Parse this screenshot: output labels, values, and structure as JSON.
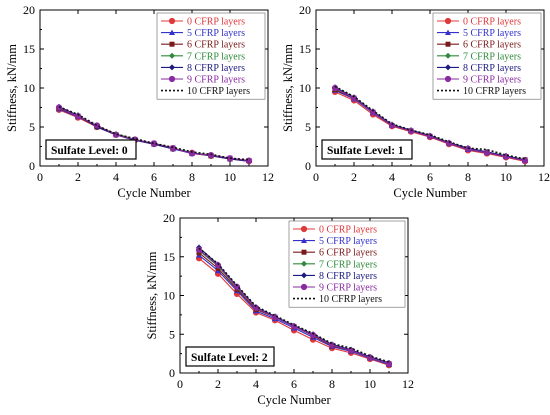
{
  "series_styles": [
    {
      "name": "0 CFRP layers",
      "color": "#e0383a",
      "text_color": "#e0383a",
      "marker": "circle",
      "dash": ""
    },
    {
      "name": "5 CFRP layers",
      "color": "#3333cc",
      "text_color": "#3333cc",
      "marker": "triangle",
      "dash": ""
    },
    {
      "name": "6 CFRP layers",
      "color": "#7a1a1a",
      "text_color": "#7a1a1a",
      "marker": "square",
      "dash": ""
    },
    {
      "name": "7 CFRP layers",
      "color": "#2e8b3a",
      "text_color": "#2e8b3a",
      "marker": "diamond",
      "dash": ""
    },
    {
      "name": "8 CFRP layers",
      "color": "#1c1c80",
      "text_color": "#1c1c80",
      "marker": "diamond",
      "dash": ""
    },
    {
      "name": "9 CFRP layers",
      "color": "#8a2aa0",
      "text_color": "#8a2aa0",
      "marker": "circle",
      "dash": ""
    },
    {
      "name": "10 CFRP layers",
      "color": "#111111",
      "text_color": "#111111",
      "marker": "none",
      "dash": "2,2"
    }
  ],
  "chart_data": [
    {
      "type": "line",
      "xlabel": "Cycle Number",
      "ylabel": "Stiffness, kN/mm",
      "xlim": [
        0,
        12
      ],
      "ylim": [
        0,
        20
      ],
      "xticks": [
        0,
        2,
        4,
        6,
        8,
        10,
        12
      ],
      "yticks": [
        0,
        5,
        10,
        15,
        20
      ],
      "annotation": "Sulfate Level: 0",
      "legend_position": "top-right",
      "x": [
        1,
        2,
        3,
        4,
        5,
        6,
        7,
        8,
        9,
        10,
        11
      ],
      "series": [
        {
          "name": "0 CFRP layers",
          "values": [
            7.2,
            6.2,
            5.0,
            4.0,
            3.3,
            2.8,
            2.2,
            1.7,
            1.3,
            0.9,
            0.6
          ]
        },
        {
          "name": "5 CFRP layers",
          "values": [
            7.3,
            6.3,
            5.1,
            4.1,
            3.4,
            2.8,
            2.2,
            1.6,
            1.4,
            0.9,
            0.7
          ]
        },
        {
          "name": "6 CFRP layers",
          "values": [
            7.4,
            6.4,
            5.0,
            4.0,
            3.4,
            2.9,
            2.3,
            1.6,
            1.3,
            1.0,
            0.7
          ]
        },
        {
          "name": "7 CFRP layers",
          "values": [
            7.5,
            6.5,
            5.1,
            4.1,
            3.4,
            2.8,
            2.3,
            1.7,
            1.4,
            0.9,
            0.7
          ]
        },
        {
          "name": "8 CFRP layers",
          "values": [
            7.6,
            6.5,
            5.0,
            4.0,
            3.3,
            2.8,
            2.2,
            1.7,
            1.3,
            0.9,
            0.6
          ]
        },
        {
          "name": "9 CFRP layers",
          "values": [
            7.5,
            6.4,
            5.2,
            4.0,
            3.4,
            2.9,
            2.3,
            1.6,
            1.4,
            1.0,
            0.7
          ]
        },
        {
          "name": "10 CFRP layers",
          "values": [
            7.6,
            6.6,
            5.2,
            4.1,
            3.5,
            2.9,
            2.4,
            1.8,
            1.5,
            1.0,
            0.8
          ]
        }
      ]
    },
    {
      "type": "line",
      "xlabel": "Cycle Number",
      "ylabel": "Stiffness, kN/mm",
      "xlim": [
        0,
        12
      ],
      "ylim": [
        0,
        20
      ],
      "xticks": [
        0,
        2,
        4,
        6,
        8,
        10,
        12
      ],
      "yticks": [
        0,
        5,
        10,
        15,
        20
      ],
      "annotation": "Sulfate Level: 1",
      "legend_position": "top-right",
      "x": [
        1,
        2,
        3,
        4,
        5,
        6,
        7,
        8,
        9,
        10,
        11
      ],
      "series": [
        {
          "name": "0 CFRP layers",
          "values": [
            9.5,
            8.4,
            6.6,
            5.1,
            4.4,
            3.7,
            2.8,
            2.0,
            1.6,
            1.1,
            0.6
          ]
        },
        {
          "name": "5 CFRP layers",
          "values": [
            9.7,
            8.6,
            6.8,
            5.2,
            4.5,
            3.8,
            2.9,
            2.1,
            1.7,
            1.2,
            0.7
          ]
        },
        {
          "name": "6 CFRP layers",
          "values": [
            9.8,
            8.7,
            6.9,
            5.2,
            4.5,
            3.8,
            2.9,
            2.2,
            1.7,
            1.2,
            0.8
          ]
        },
        {
          "name": "7 CFRP layers",
          "values": [
            9.9,
            8.8,
            7.0,
            5.3,
            4.5,
            3.9,
            3.0,
            2.2,
            1.8,
            1.3,
            0.8
          ]
        },
        {
          "name": "8 CFRP layers",
          "values": [
            10.1,
            8.8,
            7.0,
            5.3,
            4.6,
            3.9,
            3.0,
            2.3,
            1.8,
            1.3,
            0.8
          ]
        },
        {
          "name": "9 CFRP layers",
          "values": [
            10.0,
            8.7,
            6.9,
            5.2,
            4.5,
            3.8,
            2.9,
            2.2,
            1.7,
            1.2,
            0.7
          ]
        },
        {
          "name": "10 CFRP layers",
          "values": [
            10.2,
            8.9,
            7.1,
            5.4,
            4.6,
            4.0,
            3.1,
            2.3,
            2.1,
            1.4,
            0.9
          ]
        }
      ]
    },
    {
      "type": "line",
      "xlabel": "Cycle Number",
      "ylabel": "Stiffness, kN/mm",
      "xlim": [
        0,
        12
      ],
      "ylim": [
        0,
        20
      ],
      "xticks": [
        0,
        2,
        4,
        6,
        8,
        10,
        12
      ],
      "yticks": [
        0,
        5,
        10,
        15,
        20
      ],
      "annotation": "Sulfate Level: 2",
      "legend_position": "top-right",
      "x": [
        1,
        2,
        3,
        4,
        5,
        6,
        7,
        8,
        9,
        10,
        11
      ],
      "series": [
        {
          "name": "0 CFRP layers",
          "values": [
            14.8,
            12.8,
            10.2,
            7.8,
            6.8,
            5.5,
            4.3,
            3.2,
            2.6,
            1.8,
            1.0
          ]
        },
        {
          "name": "5 CFRP layers",
          "values": [
            15.2,
            13.2,
            10.6,
            8.0,
            7.0,
            5.8,
            4.6,
            3.4,
            2.8,
            1.9,
            1.1
          ]
        },
        {
          "name": "6 CFRP layers",
          "values": [
            15.5,
            13.5,
            10.8,
            8.2,
            7.2,
            6.0,
            4.8,
            3.5,
            2.9,
            2.0,
            1.2
          ]
        },
        {
          "name": "7 CFRP layers",
          "values": [
            15.8,
            13.8,
            11.0,
            8.4,
            7.2,
            6.0,
            4.9,
            3.6,
            3.0,
            2.0,
            1.2
          ]
        },
        {
          "name": "8 CFRP layers",
          "values": [
            16.2,
            14.0,
            11.2,
            8.5,
            7.3,
            6.1,
            5.0,
            3.7,
            3.0,
            2.1,
            1.3
          ]
        },
        {
          "name": "9 CFRP layers",
          "values": [
            15.9,
            13.9,
            11.1,
            8.4,
            7.2,
            6.0,
            4.9,
            3.6,
            2.9,
            2.0,
            1.2
          ]
        },
        {
          "name": "10 CFRP layers",
          "values": [
            16.1,
            14.1,
            11.3,
            8.6,
            7.4,
            6.2,
            5.1,
            3.8,
            3.2,
            2.2,
            1.4
          ]
        }
      ]
    }
  ]
}
